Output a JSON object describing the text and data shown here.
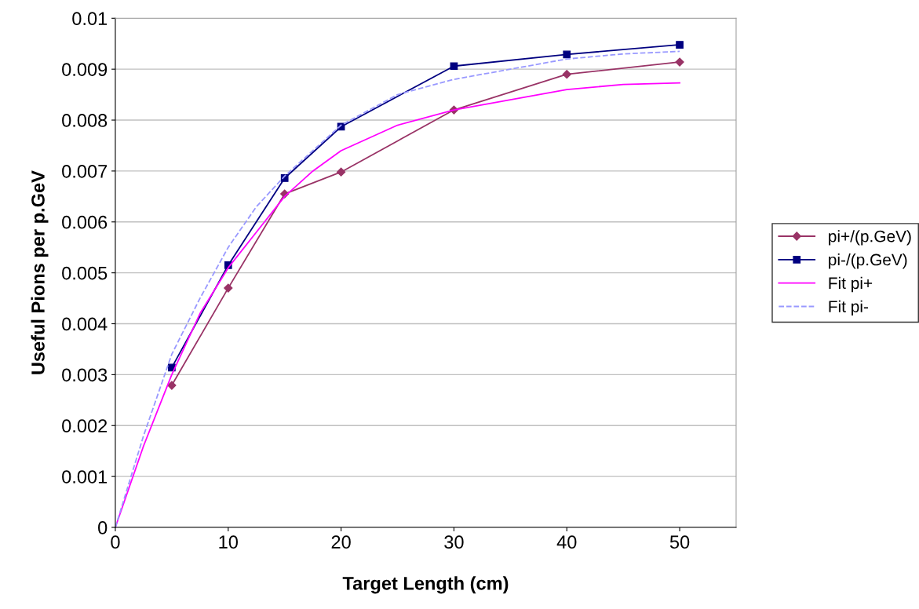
{
  "chart_data": {
    "type": "line",
    "xlabel": "Target Length (cm)",
    "ylabel": "Useful Pions per p.GeV",
    "xlim": [
      0,
      55
    ],
    "xticks": [
      0,
      10,
      20,
      30,
      40,
      50
    ],
    "ylim": [
      0,
      0.01
    ],
    "yticks": [
      0,
      0.001,
      0.002,
      0.003,
      0.004,
      0.005,
      0.006,
      0.007,
      0.008,
      0.009,
      0.01
    ],
    "grid": "y",
    "legend": "right",
    "series": [
      {
        "name": "pi+/(p.GeV)",
        "color": "#993366",
        "marker": "diamond",
        "line_style": "solid",
        "x": [
          5,
          10,
          15,
          20,
          30,
          40,
          50
        ],
        "values": [
          0.00279,
          0.0047,
          0.00655,
          0.00698,
          0.0082,
          0.0089,
          0.00914
        ]
      },
      {
        "name": "pi-/(p.GeV)",
        "color": "#000080",
        "marker": "square",
        "line_style": "solid",
        "x": [
          5,
          10,
          15,
          20,
          30,
          40,
          50
        ],
        "values": [
          0.00314,
          0.00515,
          0.00686,
          0.00787,
          0.00906,
          0.00929,
          0.00948
        ]
      },
      {
        "name": "Fit pi+",
        "color": "#ff00ff",
        "marker": "none",
        "line_style": "solid",
        "x": [
          0,
          2.5,
          5,
          7.5,
          10,
          12.5,
          15,
          17.5,
          20,
          25,
          30,
          35,
          40,
          45,
          50
        ],
        "values": [
          0,
          0.0016,
          0.003,
          0.0042,
          0.0051,
          0.0058,
          0.0065,
          0.007,
          0.0074,
          0.0079,
          0.0082,
          0.0084,
          0.0086,
          0.0087,
          0.00873
        ]
      },
      {
        "name": "Fit pi-",
        "color": "#9999ff",
        "marker": "none",
        "line_style": "dashed",
        "x": [
          0,
          2.5,
          5,
          7.5,
          10,
          12.5,
          15,
          17.5,
          20,
          25,
          30,
          35,
          40,
          45,
          50
        ],
        "values": [
          0,
          0.0018,
          0.0034,
          0.0045,
          0.0055,
          0.0063,
          0.0069,
          0.0074,
          0.0079,
          0.0085,
          0.0088,
          0.009,
          0.0092,
          0.0093,
          0.00935
        ]
      }
    ]
  }
}
